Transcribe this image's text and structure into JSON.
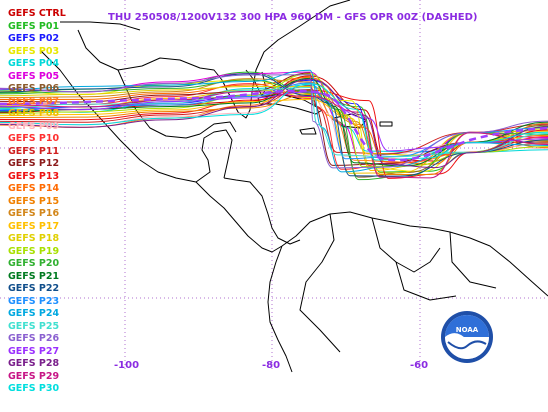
{
  "title": "THU 250508/1200V132  300 HPA 960 DM - GFS OPR 00Z (DASHED)",
  "logo_text": "NOAA",
  "axis": {
    "lon_labels": [
      "-100",
      "-80",
      "-60"
    ]
  },
  "members": [
    {
      "label": "GEFS CTRL",
      "color": "#cc0000"
    },
    {
      "label": "GEFS P01",
      "color": "#22bb22"
    },
    {
      "label": "GEFS P02",
      "color": "#1a1aff"
    },
    {
      "label": "GEFS P03",
      "color": "#e8e800"
    },
    {
      "label": "GEFS P04",
      "color": "#00d8d8"
    },
    {
      "label": "GEFS P05",
      "color": "#dd00dd"
    },
    {
      "label": "GEFS P06",
      "color": "#8b5a2b"
    },
    {
      "label": "GEFS P07",
      "color": "#ff7f24"
    },
    {
      "label": "GEFS P08",
      "color": "#f0c000"
    },
    {
      "label": "GEFS P09",
      "color": "#ffb6c1"
    },
    {
      "label": "GEFS P10",
      "color": "#ff3030"
    },
    {
      "label": "GEFS P11",
      "color": "#d02020"
    },
    {
      "label": "GEFS P12",
      "color": "#8b1a1a"
    },
    {
      "label": "GEFS P13",
      "color": "#ee1111"
    },
    {
      "label": "GEFS P14",
      "color": "#ff6a00"
    },
    {
      "label": "GEFS P15",
      "color": "#f08000"
    },
    {
      "label": "GEFS P16",
      "color": "#d2861a"
    },
    {
      "label": "GEFS P17",
      "color": "#ffc000"
    },
    {
      "label": "GEFS P18",
      "color": "#e0d000"
    },
    {
      "label": "GEFS P19",
      "color": "#a8e000"
    },
    {
      "label": "GEFS P20",
      "color": "#30b030"
    },
    {
      "label": "GEFS P21",
      "color": "#007a20"
    },
    {
      "label": "GEFS P22",
      "color": "#104e8b"
    },
    {
      "label": "GEFS P23",
      "color": "#1e90ff"
    },
    {
      "label": "GEFS P24",
      "color": "#00a8e0"
    },
    {
      "label": "GEFS P25",
      "color": "#40e0d0"
    },
    {
      "label": "GEFS P26",
      "color": "#8a60d0"
    },
    {
      "label": "GEFS P27",
      "color": "#9b30ff"
    },
    {
      "label": "GEFS P28",
      "color": "#7a1f8b"
    },
    {
      "label": "GEFS P29",
      "color": "#c71585"
    },
    {
      "label": "GEFS P30",
      "color": "#00dede"
    }
  ]
}
